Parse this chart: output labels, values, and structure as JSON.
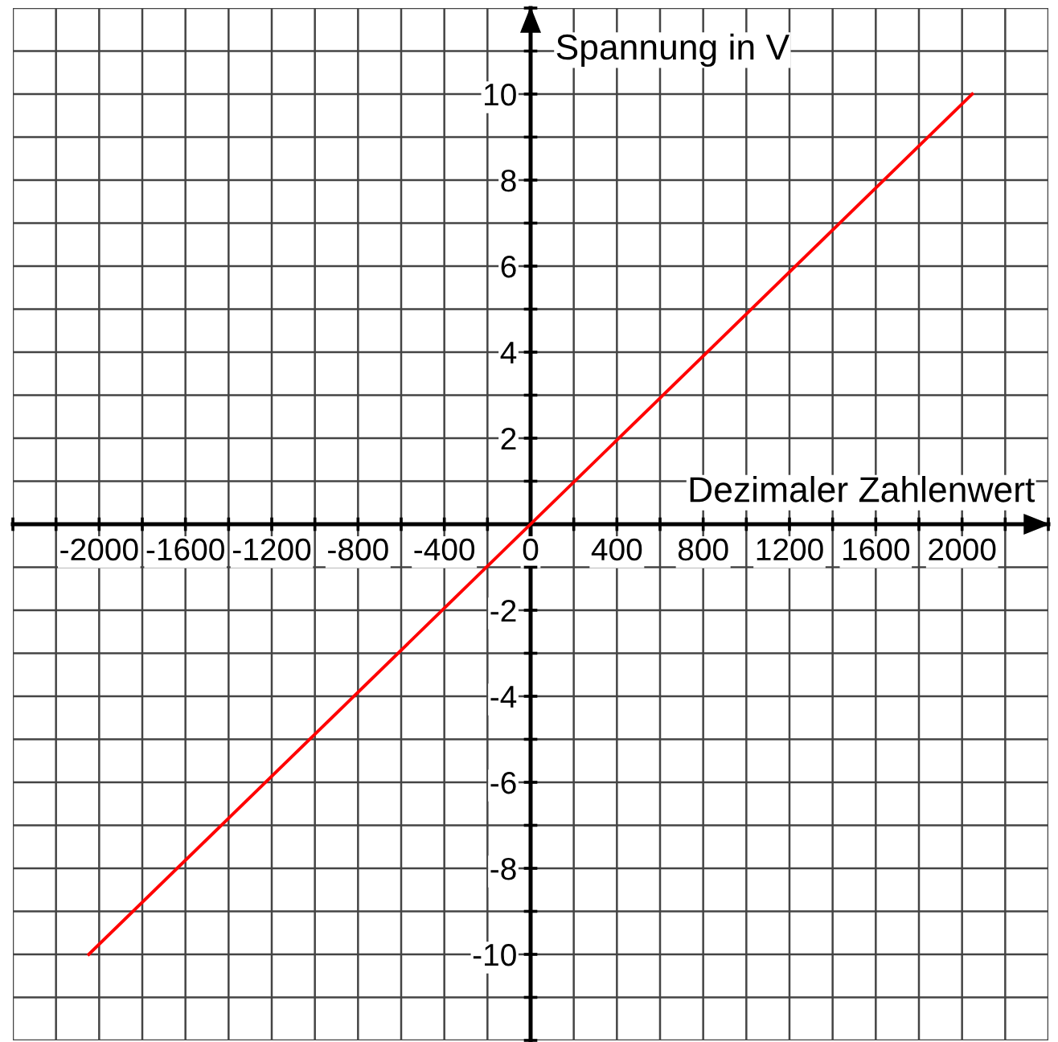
{
  "chart_data": {
    "type": "line",
    "xlabel": "Dezimaler Zahlenwert",
    "ylabel": "Spannung in V",
    "x": [
      -2048,
      2047
    ],
    "series": [
      {
        "color": "#ff0000",
        "values": [
          -10,
          10
        ]
      }
    ],
    "xlim": [
      -2400,
      2400
    ],
    "ylim": [
      -12,
      12
    ],
    "xticks": [
      {
        "value": -2400,
        "label": null
      },
      {
        "value": -2200,
        "label": null
      },
      -2000,
      {
        "value": -1800,
        "label": null
      },
      -1600,
      {
        "value": -1400,
        "label": null
      },
      -1200,
      {
        "value": -1000,
        "label": null
      },
      -800,
      {
        "value": -600,
        "label": null
      },
      -400,
      {
        "value": -200,
        "label": null
      },
      0,
      {
        "value": 200,
        "label": null
      },
      400,
      {
        "value": 600,
        "label": null
      },
      800,
      {
        "value": 1000,
        "label": null
      },
      1200,
      {
        "value": 1400,
        "label": null
      },
      1600,
      {
        "value": 1800,
        "label": null
      },
      2000,
      {
        "value": 2200,
        "label": null
      },
      {
        "value": 2400,
        "label": null
      }
    ],
    "yticks": [
      {
        "value": -12,
        "label": null
      },
      {
        "value": -11,
        "label": null
      },
      -10,
      {
        "value": -9,
        "label": null
      },
      -8,
      {
        "value": -7,
        "label": null
      },
      -6,
      {
        "value": -5,
        "label": null
      },
      -4,
      {
        "value": -3,
        "label": null
      },
      -2,
      {
        "value": -1,
        "label": null
      },
      {
        "value": 0,
        "label": null
      },
      {
        "value": 1,
        "label": null
      },
      2,
      {
        "value": 3,
        "label": null
      },
      4,
      {
        "value": 5,
        "label": null
      },
      6,
      {
        "value": 7,
        "label": null
      },
      8,
      {
        "value": 9,
        "label": null
      },
      10,
      {
        "value": 11,
        "label": null
      },
      {
        "value": 12,
        "label": null
      }
    ],
    "grid": true
  }
}
